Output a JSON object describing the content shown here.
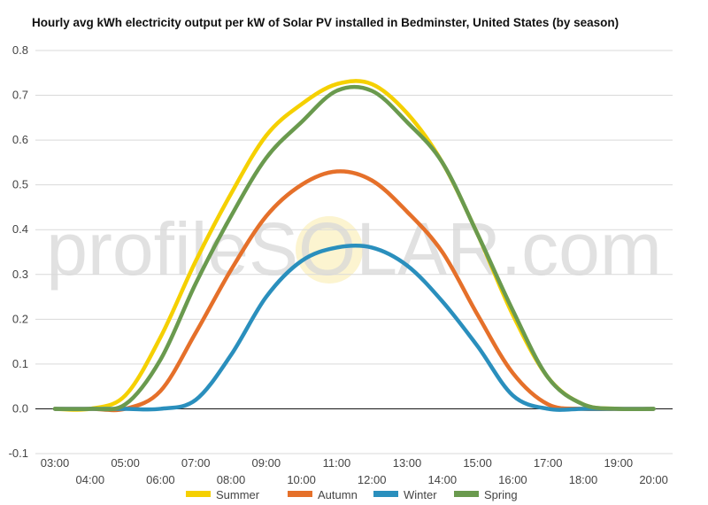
{
  "chart_data": {
    "type": "line",
    "title": "Hourly avg kWh electricity output per kW of Solar PV installed in Bedminster, United States (by season)",
    "watermark": "profileSOLAR.com",
    "x": [
      "03:00",
      "04:00",
      "05:00",
      "06:00",
      "07:00",
      "08:00",
      "09:00",
      "10:00",
      "11:00",
      "12:00",
      "13:00",
      "14:00",
      "15:00",
      "16:00",
      "17:00",
      "18:00",
      "19:00",
      "20:00"
    ],
    "ylim": [
      -0.1,
      0.8
    ],
    "yticks": [
      "0.8",
      "0.7",
      "0.6",
      "0.5",
      "0.4",
      "0.3",
      "0.2",
      "0.1",
      "0.0",
      "-0.1"
    ],
    "grid": true,
    "legend_position": "bottom",
    "series": [
      {
        "name": "Summer",
        "color": "#F5D000",
        "values": [
          0.0,
          0.0,
          0.03,
          0.16,
          0.33,
          0.48,
          0.61,
          0.68,
          0.725,
          0.725,
          0.66,
          0.55,
          0.39,
          0.21,
          0.07,
          0.01,
          0.0,
          0.0
        ]
      },
      {
        "name": "Autumn",
        "color": "#E5702A",
        "values": [
          0.0,
          0.0,
          0.0,
          0.04,
          0.17,
          0.31,
          0.43,
          0.5,
          0.53,
          0.51,
          0.44,
          0.35,
          0.21,
          0.08,
          0.01,
          0.0,
          0.0,
          0.0
        ]
      },
      {
        "name": "Winter",
        "color": "#2A8FBD",
        "values": [
          0.0,
          0.0,
          0.0,
          0.0,
          0.02,
          0.12,
          0.25,
          0.33,
          0.36,
          0.36,
          0.32,
          0.24,
          0.14,
          0.03,
          0.0,
          0.0,
          0.0,
          0.0
        ]
      },
      {
        "name": "Spring",
        "color": "#6A9A4E",
        "values": [
          0.0,
          0.0,
          0.01,
          0.11,
          0.28,
          0.43,
          0.56,
          0.64,
          0.71,
          0.71,
          0.64,
          0.55,
          0.39,
          0.22,
          0.07,
          0.01,
          0.0,
          0.0
        ]
      }
    ]
  }
}
